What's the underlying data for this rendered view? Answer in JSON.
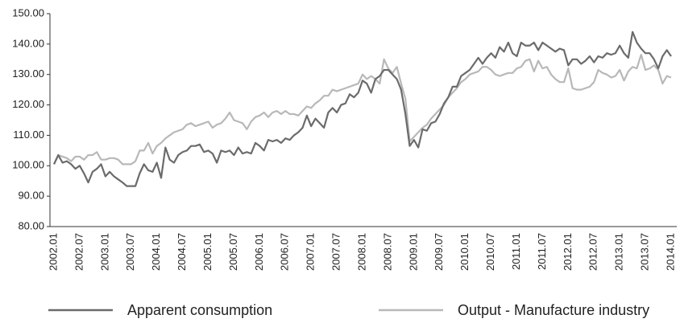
{
  "chart_data": {
    "type": "line",
    "categories": [
      "2002.01",
      null,
      null,
      null,
      null,
      null,
      "2002.07",
      null,
      null,
      null,
      null,
      null,
      "2003.01",
      null,
      null,
      null,
      null,
      null,
      "2003.07",
      null,
      null,
      null,
      null,
      null,
      "2004.01",
      null,
      null,
      null,
      null,
      null,
      "2004.07",
      null,
      null,
      null,
      null,
      null,
      "2005.01",
      null,
      null,
      null,
      null,
      null,
      "2005.07",
      null,
      null,
      null,
      null,
      null,
      "2006.01",
      null,
      null,
      null,
      null,
      null,
      "2006.07",
      null,
      null,
      null,
      null,
      null,
      "2007.01",
      null,
      null,
      null,
      null,
      null,
      "2007.07",
      null,
      null,
      null,
      null,
      null,
      "2008.01",
      null,
      null,
      null,
      null,
      null,
      "2008.07",
      null,
      null,
      null,
      null,
      null,
      "2009.01",
      null,
      null,
      null,
      null,
      null,
      "2009.07",
      null,
      null,
      null,
      null,
      null,
      "2010.01",
      null,
      null,
      null,
      null,
      null,
      "2010.07",
      null,
      null,
      null,
      null,
      null,
      "2011.01",
      null,
      null,
      null,
      null,
      null,
      "2011.07",
      null,
      null,
      null,
      null,
      null,
      "2012.01",
      null,
      null,
      null,
      null,
      null,
      "2012.07",
      null,
      null,
      null,
      null,
      null,
      "2013.01",
      null,
      null,
      null,
      null,
      null,
      "2013.07",
      null,
      null,
      null,
      null,
      null,
      "2014.01"
    ],
    "series": [
      {
        "name": "Apparent consumption",
        "color": "#6b6b6b",
        "values": [
          100.5,
          103.5,
          101,
          101.5,
          100.5,
          99,
          100,
          97.5,
          94.5,
          98,
          99,
          100.5,
          96.5,
          98,
          96.5,
          95.5,
          94.5,
          93.3,
          93.3,
          93.3,
          97.5,
          100.5,
          98.5,
          98,
          101,
          96,
          106,
          102,
          101,
          103.5,
          104.5,
          105,
          106.5,
          106.5,
          107,
          104.5,
          105,
          104,
          101,
          105,
          104.5,
          105,
          103.5,
          106,
          104,
          104.5,
          104,
          107.5,
          106.5,
          105,
          108.5,
          108,
          108.5,
          107.5,
          109,
          108.5,
          110,
          111,
          112.5,
          116.5,
          113,
          115.5,
          114,
          112.5,
          117.5,
          119,
          117.5,
          120,
          120.5,
          123.5,
          122.5,
          124,
          128,
          127,
          124,
          128.5,
          129.5,
          131.5,
          131.5,
          130,
          128.5,
          125,
          117,
          106.5,
          108.5,
          106,
          112,
          111.5,
          114,
          114.5,
          117,
          120.5,
          122.5,
          126,
          126,
          129.5,
          130.5,
          131.5,
          133.5,
          135.5,
          133.5,
          135.5,
          137,
          135.5,
          139,
          137.5,
          140.5,
          137,
          136,
          140.5,
          139.5,
          139.5,
          140.5,
          138,
          140.5,
          139.5,
          138.5,
          137.5,
          138.5,
          138,
          133,
          135,
          135,
          133.5,
          134.5,
          136,
          134,
          136,
          135.5,
          137,
          136.5,
          137,
          139.5,
          137,
          135.5,
          144,
          140.5,
          138.5,
          137,
          137,
          135,
          132,
          136,
          138,
          136
        ]
      },
      {
        "name": "Output - Manufacture industry",
        "color": "#b8b8b8",
        "values": [
          100.5,
          103.5,
          103,
          102.5,
          101.5,
          103,
          103,
          102,
          103.5,
          103.5,
          104.5,
          102,
          102,
          102.5,
          102.5,
          102,
          100.5,
          100.5,
          100.5,
          101.5,
          105,
          105,
          107.5,
          104,
          106.5,
          107.5,
          109,
          110,
          111,
          111.5,
          112,
          113.5,
          114,
          113,
          113.5,
          114,
          114.5,
          112.5,
          113.5,
          114,
          115.5,
          117.5,
          115,
          114.5,
          114,
          112,
          114.5,
          116,
          116.5,
          117.5,
          116,
          117.5,
          118,
          117,
          118,
          117,
          117,
          116.5,
          118,
          119.5,
          119,
          120.5,
          121.5,
          123,
          123,
          125,
          124.5,
          125,
          125.5,
          126,
          126.5,
          127,
          130,
          128.5,
          129.5,
          128.5,
          127,
          135,
          132,
          130.5,
          132.5,
          127,
          122,
          108,
          109.5,
          111,
          112.5,
          113.5,
          115.5,
          117,
          118.5,
          120,
          122.5,
          124,
          125.5,
          127.5,
          128.5,
          130,
          130.5,
          131,
          132.5,
          132.5,
          131.5,
          130,
          129.5,
          130,
          130.5,
          130.5,
          132,
          132.5,
          134.5,
          135,
          131,
          134.5,
          132,
          132.5,
          130,
          128.5,
          127.5,
          127.5,
          132,
          125.5,
          125,
          125,
          125.5,
          126,
          127.5,
          131.5,
          130.5,
          130,
          129,
          129.5,
          131.5,
          128,
          131,
          132.5,
          132,
          136.5,
          131.5,
          132,
          133,
          131.5,
          127,
          129.5,
          129
        ]
      }
    ],
    "ylim": [
      80,
      150
    ],
    "yticks": [
      {
        "value": 80,
        "label": "80.00"
      },
      {
        "value": 90,
        "label": "90.00"
      },
      {
        "value": 100,
        "label": "100.00"
      },
      {
        "value": 110,
        "label": "110.00"
      },
      {
        "value": 120,
        "label": "120.00"
      },
      {
        "value": 130,
        "label": "130.00"
      },
      {
        "value": 140,
        "label": "140.00"
      },
      {
        "value": 150,
        "label": "150.00"
      }
    ],
    "grid": false
  }
}
